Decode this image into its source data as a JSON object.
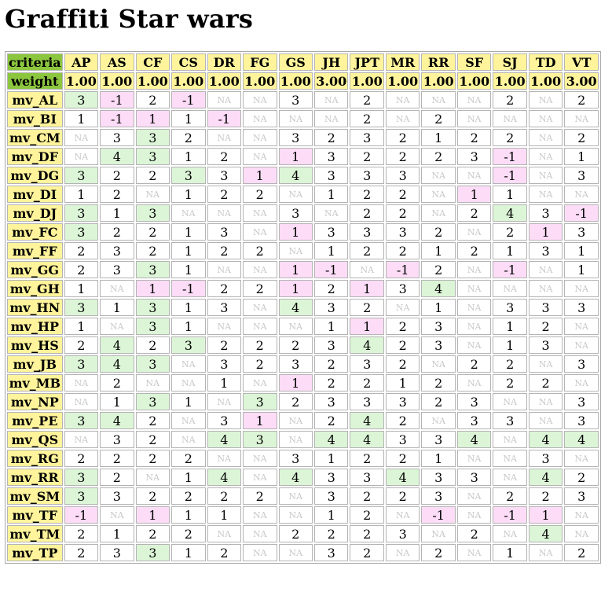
{
  "title": "Graffiti Star wars",
  "corner_label": "criteria",
  "weight_label": "weight",
  "columns": [
    "AP",
    "AS",
    "CF",
    "CS",
    "DR",
    "FG",
    "GS",
    "JH",
    "JPT",
    "MR",
    "RR",
    "SF",
    "SJ",
    "TD",
    "VT"
  ],
  "weights": [
    "1.00",
    "1.00",
    "1.00",
    "1.00",
    "1.00",
    "1.00",
    "1.00",
    "3.00",
    "1.00",
    "1.00",
    "1.00",
    "1.00",
    "1.00",
    "1.00",
    "3.00"
  ],
  "colors": {
    "header_bg": "#fff49b",
    "corner_bg": "#8cc63e",
    "positive_bg": "#dcf5d7",
    "negative_bg": "#fcdcf6",
    "na_text": "#c8c8c8"
  },
  "rows": [
    {
      "name": "mv_AL",
      "values": [
        "3",
        "-1",
        "2",
        "-1",
        "NA",
        "NA",
        "3",
        "NA",
        "2",
        "NA",
        "NA",
        "NA",
        "2",
        "NA",
        "2"
      ]
    },
    {
      "name": "mv_BI",
      "values": [
        "1",
        "-1",
        "1",
        "1",
        "-1",
        "NA",
        "NA",
        "NA",
        "2",
        "NA",
        "2",
        "NA",
        "NA",
        "NA",
        "NA"
      ]
    },
    {
      "name": "mv_CM",
      "values": [
        "NA",
        "3",
        "3",
        "2",
        "NA",
        "NA",
        "3",
        "2",
        "3",
        "2",
        "1",
        "2",
        "2",
        "NA",
        "2"
      ]
    },
    {
      "name": "mv_DF",
      "values": [
        "NA",
        "4",
        "3",
        "1",
        "2",
        "NA",
        "1",
        "3",
        "2",
        "2",
        "2",
        "3",
        "-1",
        "NA",
        "1"
      ]
    },
    {
      "name": "mv_DG",
      "values": [
        "3",
        "2",
        "2",
        "3",
        "3",
        "1",
        "4",
        "3",
        "3",
        "3",
        "NA",
        "NA",
        "-1",
        "NA",
        "3"
      ]
    },
    {
      "name": "mv_DI",
      "values": [
        "1",
        "2",
        "NA",
        "1",
        "2",
        "2",
        "NA",
        "1",
        "2",
        "2",
        "NA",
        "1",
        "1",
        "NA",
        "NA"
      ]
    },
    {
      "name": "mv_DJ",
      "values": [
        "3",
        "1",
        "3",
        "NA",
        "NA",
        "NA",
        "3",
        "NA",
        "2",
        "2",
        "NA",
        "2",
        "4",
        "3",
        "-1"
      ]
    },
    {
      "name": "mv_FC",
      "values": [
        "3",
        "2",
        "2",
        "1",
        "3",
        "NA",
        "1",
        "3",
        "3",
        "3",
        "2",
        "NA",
        "2",
        "1",
        "3"
      ]
    },
    {
      "name": "mv_FF",
      "values": [
        "2",
        "3",
        "2",
        "1",
        "2",
        "2",
        "NA",
        "1",
        "2",
        "2",
        "1",
        "2",
        "1",
        "3",
        "1"
      ]
    },
    {
      "name": "mv_GG",
      "values": [
        "2",
        "3",
        "3",
        "1",
        "NA",
        "NA",
        "1",
        "-1",
        "NA",
        "-1",
        "2",
        "NA",
        "-1",
        "NA",
        "1"
      ]
    },
    {
      "name": "mv_GH",
      "values": [
        "1",
        "NA",
        "1",
        "-1",
        "2",
        "2",
        "1",
        "2",
        "1",
        "3",
        "4",
        "NA",
        "NA",
        "NA",
        "NA"
      ]
    },
    {
      "name": "mv_HN",
      "values": [
        "3",
        "1",
        "3",
        "1",
        "3",
        "NA",
        "4",
        "3",
        "2",
        "NA",
        "1",
        "NA",
        "3",
        "3",
        "3"
      ]
    },
    {
      "name": "mv_HP",
      "values": [
        "1",
        "NA",
        "3",
        "1",
        "NA",
        "NA",
        "NA",
        "1",
        "1",
        "2",
        "3",
        "NA",
        "1",
        "2",
        "NA"
      ]
    },
    {
      "name": "mv_HS",
      "values": [
        "2",
        "4",
        "2",
        "3",
        "2",
        "2",
        "2",
        "3",
        "4",
        "2",
        "3",
        "NA",
        "1",
        "3",
        "NA"
      ]
    },
    {
      "name": "mv_JB",
      "values": [
        "3",
        "4",
        "3",
        "NA",
        "3",
        "2",
        "3",
        "2",
        "3",
        "2",
        "NA",
        "2",
        "2",
        "NA",
        "3"
      ]
    },
    {
      "name": "mv_MB",
      "values": [
        "NA",
        "2",
        "NA",
        "NA",
        "1",
        "NA",
        "1",
        "2",
        "2",
        "1",
        "2",
        "NA",
        "2",
        "2",
        "NA"
      ]
    },
    {
      "name": "mv_NP",
      "values": [
        "NA",
        "1",
        "3",
        "1",
        "NA",
        "3",
        "2",
        "3",
        "3",
        "3",
        "2",
        "3",
        "NA",
        "NA",
        "3"
      ]
    },
    {
      "name": "mv_PE",
      "values": [
        "3",
        "4",
        "2",
        "NA",
        "3",
        "1",
        "NA",
        "2",
        "4",
        "2",
        "NA",
        "3",
        "3",
        "NA",
        "3"
      ]
    },
    {
      "name": "mv_QS",
      "values": [
        "NA",
        "3",
        "2",
        "NA",
        "4",
        "3",
        "NA",
        "4",
        "4",
        "3",
        "3",
        "4",
        "NA",
        "4",
        "4"
      ]
    },
    {
      "name": "mv_RG",
      "values": [
        "2",
        "2",
        "2",
        "2",
        "NA",
        "NA",
        "3",
        "1",
        "2",
        "2",
        "1",
        "NA",
        "NA",
        "3",
        "NA"
      ]
    },
    {
      "name": "mv_RR",
      "values": [
        "3",
        "2",
        "NA",
        "1",
        "4",
        "NA",
        "4",
        "3",
        "3",
        "4",
        "3",
        "3",
        "NA",
        "4",
        "2"
      ]
    },
    {
      "name": "mv_SM",
      "values": [
        "3",
        "3",
        "2",
        "2",
        "2",
        "2",
        "NA",
        "3",
        "2",
        "2",
        "3",
        "NA",
        "2",
        "2",
        "3"
      ]
    },
    {
      "name": "mv_TF",
      "values": [
        "-1",
        "NA",
        "1",
        "1",
        "1",
        "NA",
        "NA",
        "1",
        "2",
        "NA",
        "-1",
        "NA",
        "-1",
        "1",
        "NA"
      ]
    },
    {
      "name": "mv_TM",
      "values": [
        "2",
        "1",
        "2",
        "2",
        "NA",
        "NA",
        "2",
        "2",
        "2",
        "3",
        "NA",
        "2",
        "NA",
        "4",
        "NA"
      ]
    },
    {
      "name": "mv_TP",
      "values": [
        "2",
        "3",
        "3",
        "1",
        "2",
        "NA",
        "NA",
        "3",
        "2",
        "NA",
        "2",
        "NA",
        "1",
        "NA",
        "2"
      ]
    }
  ],
  "highlights": {
    "mv_AL": {
      "AP": "pos",
      "AS": "neg",
      "CS": "neg"
    },
    "mv_BI": {
      "AS": "neg",
      "CF": "neg",
      "DR": "neg"
    },
    "mv_CM": {
      "CF": "pos"
    },
    "mv_DF": {
      "AS": "pos",
      "CF": "pos",
      "GS": "neg",
      "SJ": "neg"
    },
    "mv_DG": {
      "AP": "pos",
      "CS": "pos",
      "FG": "neg",
      "GS": "pos",
      "SJ": "neg"
    },
    "mv_DI": {
      "SF": "neg"
    },
    "mv_DJ": {
      "AP": "pos",
      "CF": "pos",
      "SJ": "pos",
      "VT": "neg"
    },
    "mv_FC": {
      "AP": "pos",
      "GS": "neg",
      "TD": "neg"
    },
    "mv_GG": {
      "CF": "pos",
      "GS": "neg",
      "JH": "neg",
      "MR": "neg",
      "SJ": "neg"
    },
    "mv_GH": {
      "CF": "neg",
      "CS": "neg",
      "GS": "neg",
      "JPT": "neg",
      "RR": "pos"
    },
    "mv_HN": {
      "AP": "pos",
      "CF": "pos",
      "GS": "pos"
    },
    "mv_HP": {
      "CF": "pos",
      "JPT": "neg"
    },
    "mv_HS": {
      "AS": "pos",
      "CS": "pos",
      "JPT": "pos"
    },
    "mv_JB": {
      "AP": "pos",
      "AS": "pos",
      "CF": "pos"
    },
    "mv_MB": {
      "GS": "neg"
    },
    "mv_NP": {
      "CF": "pos",
      "FG": "pos"
    },
    "mv_PE": {
      "AP": "pos",
      "AS": "pos",
      "FG": "neg",
      "JPT": "pos"
    },
    "mv_QS": {
      "DR": "pos",
      "FG": "pos",
      "JH": "pos",
      "JPT": "pos",
      "SF": "pos",
      "TD": "pos",
      "VT": "pos"
    },
    "mv_RR": {
      "AP": "pos",
      "DR": "pos",
      "GS": "pos",
      "MR": "pos",
      "TD": "pos"
    },
    "mv_SM": {
      "AP": "pos"
    },
    "mv_TF": {
      "AP": "neg",
      "CF": "neg",
      "RR": "neg",
      "SJ": "neg",
      "TD": "neg"
    },
    "mv_TM": {
      "TD": "pos"
    },
    "mv_TP": {
      "CF": "pos"
    }
  }
}
